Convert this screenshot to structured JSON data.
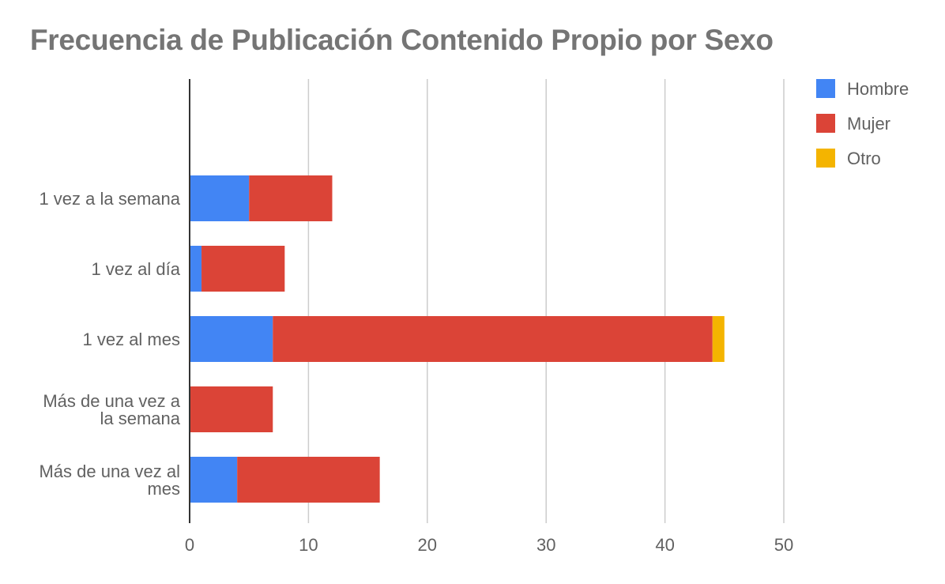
{
  "chart_data": {
    "type": "bar",
    "orientation": "horizontal",
    "stacked": true,
    "title": "Frecuencia de Publicación Contenido Propio por Sexo",
    "categories": [
      [
        "1 vez a la semana"
      ],
      [
        "1 vez al día"
      ],
      [
        "1 vez al mes"
      ],
      [
        "Más de una vez a",
        "la semana"
      ],
      [
        "Más de una vez al",
        "mes"
      ]
    ],
    "series": [
      {
        "name": "Hombre",
        "color": "#4285f4",
        "values": [
          5,
          1,
          7,
          0,
          4
        ]
      },
      {
        "name": "Mujer",
        "color": "#db4437",
        "values": [
          7,
          7,
          37,
          7,
          12
        ]
      },
      {
        "name": "Otro",
        "color": "#f4b400",
        "values": [
          0,
          0,
          1,
          0,
          0
        ]
      }
    ],
    "xlim": [
      0,
      50
    ],
    "xticks": [
      "0",
      "10",
      "20",
      "30",
      "40",
      "50"
    ],
    "grid": true,
    "legend_position": "right"
  }
}
